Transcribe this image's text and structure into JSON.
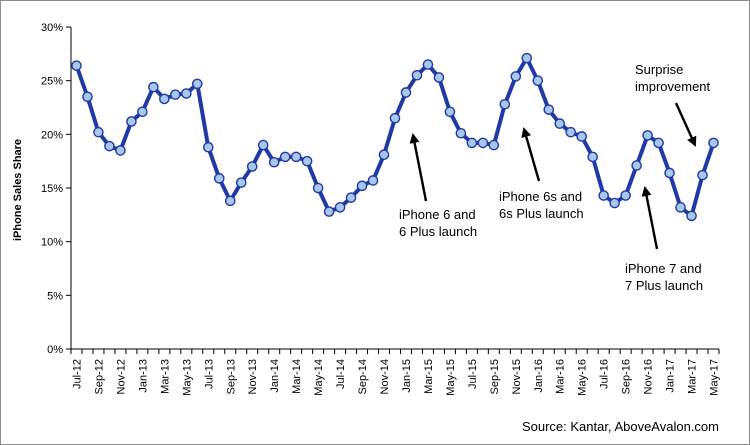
{
  "chart_data": {
    "type": "line",
    "title": "",
    "xlabel": "",
    "ylabel": "iPhone Sales Share",
    "ylim": [
      0,
      30
    ],
    "yticks": [
      "0%",
      "5%",
      "10%",
      "15%",
      "20%",
      "25%",
      "30%"
    ],
    "x_tick_labels": [
      "Jul-12",
      "Sep-12",
      "Nov-12",
      "Jan-13",
      "Mar-13",
      "May-13",
      "Jul-13",
      "Sep-13",
      "Nov-13",
      "Jan-14",
      "Mar-14",
      "May-14",
      "Jul-14",
      "Sep-14",
      "Nov-14",
      "Jan-15",
      "Mar-15",
      "May-15",
      "Jul-15",
      "Sep-15",
      "Nov-15",
      "Jan-16",
      "Mar-16",
      "May-16",
      "Jul-16",
      "Sep-16",
      "Nov-16",
      "Jan-17",
      "Mar-17",
      "May-17"
    ],
    "categories": [
      "Jul-12",
      "Aug-12",
      "Sep-12",
      "Oct-12",
      "Nov-12",
      "Dec-12",
      "Jan-13",
      "Feb-13",
      "Mar-13",
      "Apr-13",
      "May-13",
      "Jun-13",
      "Jul-13",
      "Aug-13",
      "Sep-13",
      "Oct-13",
      "Nov-13",
      "Dec-13",
      "Jan-14",
      "Feb-14",
      "Mar-14",
      "Apr-14",
      "May-14",
      "Jun-14",
      "Jul-14",
      "Aug-14",
      "Sep-14",
      "Oct-14",
      "Nov-14",
      "Dec-14",
      "Jan-15",
      "Feb-15",
      "Mar-15",
      "Apr-15",
      "May-15",
      "Jun-15",
      "Jul-15",
      "Aug-15",
      "Sep-15",
      "Oct-15",
      "Nov-15",
      "Dec-15",
      "Jan-16",
      "Feb-16",
      "Mar-16",
      "Apr-16",
      "May-16",
      "Jun-16",
      "Jul-16",
      "Aug-16",
      "Sep-16",
      "Oct-16",
      "Nov-16",
      "Dec-16",
      "Jan-17",
      "Feb-17",
      "Mar-17",
      "Apr-17",
      "May-17"
    ],
    "values": [
      26.4,
      23.5,
      20.2,
      18.9,
      18.5,
      21.2,
      22.1,
      24.4,
      23.3,
      23.7,
      23.8,
      24.7,
      18.8,
      15.9,
      13.8,
      15.5,
      17.0,
      19.0,
      17.4,
      17.9,
      17.9,
      17.5,
      15.0,
      12.8,
      13.2,
      14.1,
      15.2,
      15.7,
      18.1,
      21.5,
      23.9,
      25.5,
      26.5,
      25.3,
      22.1,
      20.1,
      19.2,
      19.2,
      19.0,
      22.8,
      25.4,
      27.1,
      25.0,
      22.3,
      21.0,
      20.2,
      19.8,
      17.9,
      14.3,
      13.6,
      14.3,
      17.1,
      19.9,
      19.2,
      16.4,
      13.2,
      12.4,
      16.2,
      19.2
    ],
    "grid": false,
    "legend": "none",
    "line_color": "#1f3aa6",
    "marker_fill": "#a9c8e8",
    "marker_stroke": "#1f3aa6",
    "annotations": [
      {
        "lines": [
          "iPhone 6 and",
          "6 Plus launch"
        ],
        "points_to": "Sep-14"
      },
      {
        "lines": [
          "iPhone 6s and",
          "6s Plus launch"
        ],
        "points_to": "Sep-15"
      },
      {
        "lines": [
          "iPhone 7 and",
          "7 Plus launch"
        ],
        "points_to": "Sep-16"
      },
      {
        "lines": [
          "Surprise",
          "improvement"
        ],
        "points_to": "Apr-17"
      }
    ]
  },
  "source": "Source: Kantar, AboveAvalon.com"
}
